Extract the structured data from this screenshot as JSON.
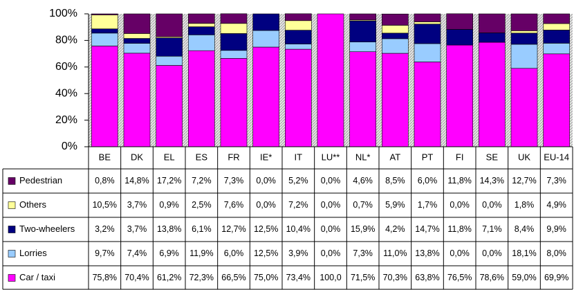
{
  "chart_data": {
    "type": "stacked_bar",
    "categories": [
      "BE",
      "DK",
      "EL",
      "ES",
      "FR",
      "IE*",
      "IT",
      "LU**",
      "NL*",
      "AT",
      "PT",
      "FI",
      "SE",
      "UK",
      "EU-14"
    ],
    "ylim": [
      0,
      100
    ],
    "yticks": [
      {
        "value": 0,
        "label": "0%"
      },
      {
        "value": 20,
        "label": "20%"
      },
      {
        "value": 40,
        "label": "40%"
      },
      {
        "value": 60,
        "label": "60%"
      },
      {
        "value": 80,
        "label": "80%"
      },
      {
        "value": 100,
        "label": "100%"
      }
    ],
    "series": [
      {
        "name": "Pedestrian",
        "color": "#660066",
        "values": [
          0.8,
          14.8,
          17.2,
          7.2,
          7.3,
          0.0,
          5.2,
          0.0,
          4.6,
          8.5,
          6.0,
          11.8,
          14.3,
          12.7,
          7.3
        ],
        "value_labels": [
          "0,8%",
          "14,8%",
          "17,2%",
          "7,2%",
          "7,3%",
          "0,0%",
          "5,2%",
          "0,0%",
          "4,6%",
          "8,5%",
          "6,0%",
          "11,8%",
          "14,3%",
          "12,7%",
          "7,3%"
        ]
      },
      {
        "name": "Others",
        "color": "#ffff99",
        "values": [
          10.5,
          3.7,
          0.9,
          2.5,
          7.6,
          0.0,
          7.2,
          0.0,
          0.7,
          5.9,
          1.7,
          0.0,
          0.0,
          1.8,
          4.9
        ],
        "value_labels": [
          "10,5%",
          "3,7%",
          "0,9%",
          "2,5%",
          "7,6%",
          "0,0%",
          "7,2%",
          "0,0%",
          "0,7%",
          "5,9%",
          "1,7%",
          "0,0%",
          "0,0%",
          "1,8%",
          "4,9%"
        ]
      },
      {
        "name": "Two-wheelers",
        "color": "#000080",
        "values": [
          3.2,
          3.7,
          13.8,
          6.1,
          12.7,
          12.5,
          10.4,
          0.0,
          15.9,
          4.2,
          14.7,
          11.8,
          7.1,
          8.4,
          9.9
        ],
        "value_labels": [
          "3,2%",
          "3,7%",
          "13,8%",
          "6,1%",
          "12,7%",
          "12,5%",
          "10,4%",
          "0,0%",
          "15,9%",
          "4,2%",
          "14,7%",
          "11,8%",
          "7,1%",
          "8,4%",
          "9,9%"
        ]
      },
      {
        "name": "Lorries",
        "color": "#99ccff",
        "values": [
          9.7,
          7.4,
          6.9,
          11.9,
          6.0,
          12.5,
          3.9,
          0.0,
          7.3,
          11.0,
          13.8,
          0.0,
          0.0,
          18.1,
          8.0
        ],
        "value_labels": [
          "9,7%",
          "7,4%",
          "6,9%",
          "11,9%",
          "6,0%",
          "12,5%",
          "3,9%",
          "0,0%",
          "7,3%",
          "11,0%",
          "13,8%",
          "0,0%",
          "0,0%",
          "18,1%",
          "8,0%"
        ]
      },
      {
        "name": "Car / taxi",
        "color": "#ff00ff",
        "values": [
          75.8,
          70.4,
          61.2,
          72.3,
          66.5,
          75.0,
          73.4,
          100.0,
          71.5,
          70.3,
          63.8,
          76.5,
          78.6,
          59.0,
          69.9
        ],
        "value_labels": [
          "75,8%",
          "70,4%",
          "61,2%",
          "72,3%",
          "66,5%",
          "75,0%",
          "73,4%",
          "100,0",
          "71,5%",
          "70,3%",
          "63,8%",
          "76,5%",
          "78,6%",
          "59,0%",
          "69,9%"
        ]
      }
    ]
  }
}
